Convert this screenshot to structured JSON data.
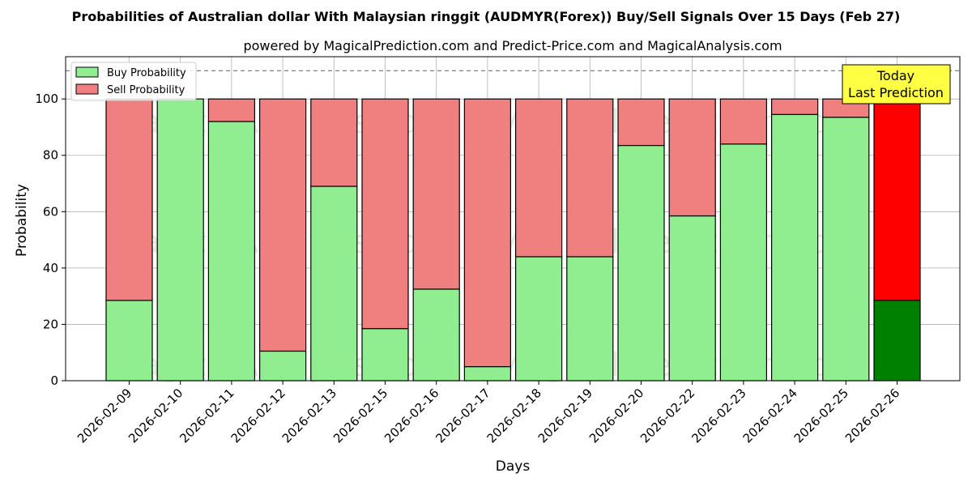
{
  "chart_data": {
    "type": "bar",
    "stacked": true,
    "title": "Probabilities of Australian dollar With Malaysian ringgit (AUDMYR(Forex)) Buy/Sell Signals Over 15 Days (Feb 27)",
    "subtitle": "powered by MagicalPrediction.com and Predict-Price.com and MagicalAnalysis.com",
    "xlabel": "Days",
    "ylabel": "Probability",
    "ylim": [
      0,
      115
    ],
    "yticks": [
      0,
      20,
      40,
      60,
      80,
      100
    ],
    "grid": true,
    "legend_position": "top-left",
    "reference_line": 110,
    "categories": [
      "2026-02-09",
      "2026-02-10",
      "2026-02-11",
      "2026-02-12",
      "2026-02-13",
      "2026-02-15",
      "2026-02-16",
      "2026-02-17",
      "2026-02-18",
      "2026-02-19",
      "2026-02-20",
      "2026-02-22",
      "2026-02-23",
      "2026-02-24",
      "2026-02-25",
      "2026-02-26"
    ],
    "series": [
      {
        "name": "Buy Probability",
        "color": "#90ee90",
        "highlight_color": "#008000",
        "values": [
          28.5,
          100,
          92,
          10.5,
          69,
          18.5,
          32.5,
          5,
          44,
          44,
          83.5,
          58.5,
          84,
          94.5,
          93.5,
          28.5
        ]
      },
      {
        "name": "Sell Probability",
        "color": "#f08080",
        "highlight_color": "#ff0000",
        "values": [
          71.5,
          0,
          8,
          89.5,
          31,
          81.5,
          67.5,
          95,
          56,
          56,
          16.5,
          41.5,
          16,
          5.5,
          6.5,
          71.5
        ]
      }
    ],
    "highlight_index": 15,
    "annotation": {
      "lines": [
        "Today",
        "Last Prediction"
      ],
      "color": "#ffff44"
    },
    "watermarks": [
      "MagicalAnalysis.com",
      "MagicalPrediction.com"
    ]
  }
}
